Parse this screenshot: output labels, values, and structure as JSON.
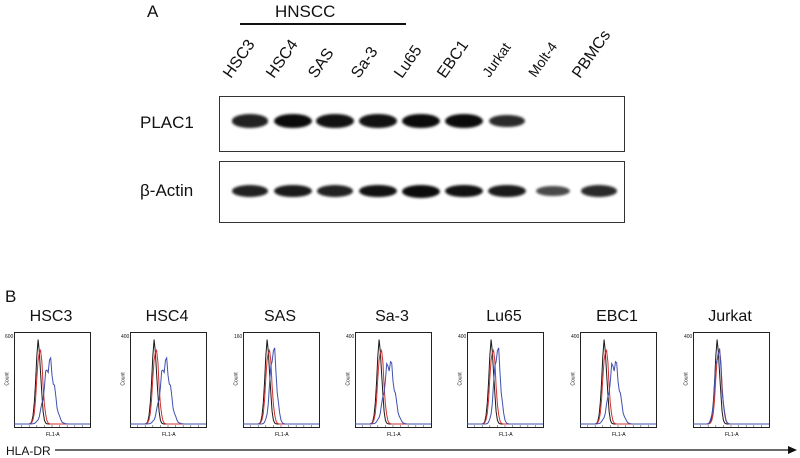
{
  "panel_a": {
    "letter": "A",
    "group_label": "HNSCC",
    "lanes": [
      "HSC3",
      "HSC4",
      "SAS",
      "Sa-3",
      "Lu65",
      "EBC1",
      "Jurkat",
      "Molt-4",
      "PBMCs"
    ],
    "blots": [
      {
        "label": "PLAC1",
        "band_intensity": [
          0.85,
          1.0,
          0.95,
          0.95,
          1.0,
          1.0,
          0.8,
          0.0,
          0.0
        ]
      },
      {
        "label": "β-Actin",
        "band_intensity": [
          0.85,
          0.9,
          0.85,
          0.95,
          1.0,
          0.95,
          0.9,
          0.6,
          0.8
        ]
      }
    ]
  },
  "panel_b": {
    "letter": "B",
    "axis_label": "HLA-DR",
    "histograms": [
      {
        "title": "HSC3",
        "ymax_label": "600",
        "peak_shift": "strong"
      },
      {
        "title": "HSC4",
        "ymax_label": "400",
        "peak_shift": "strong"
      },
      {
        "title": "SAS",
        "ymax_label": "160",
        "peak_shift": "weak"
      },
      {
        "title": "Sa-3",
        "ymax_label": "400",
        "peak_shift": "moderate"
      },
      {
        "title": "Lu65",
        "ymax_label": "400",
        "peak_shift": "weak"
      },
      {
        "title": "EBC1",
        "ymax_label": "400",
        "peak_shift": "moderate"
      },
      {
        "title": "Jurkat",
        "ymax_label": "400",
        "peak_shift": "none"
      }
    ],
    "x_axis_tick": "FL1-A",
    "y_axis_tick": "Count",
    "colors": {
      "isotype": "#1a1a1a",
      "control": "#d03030",
      "stain": "#4050b0"
    }
  }
}
